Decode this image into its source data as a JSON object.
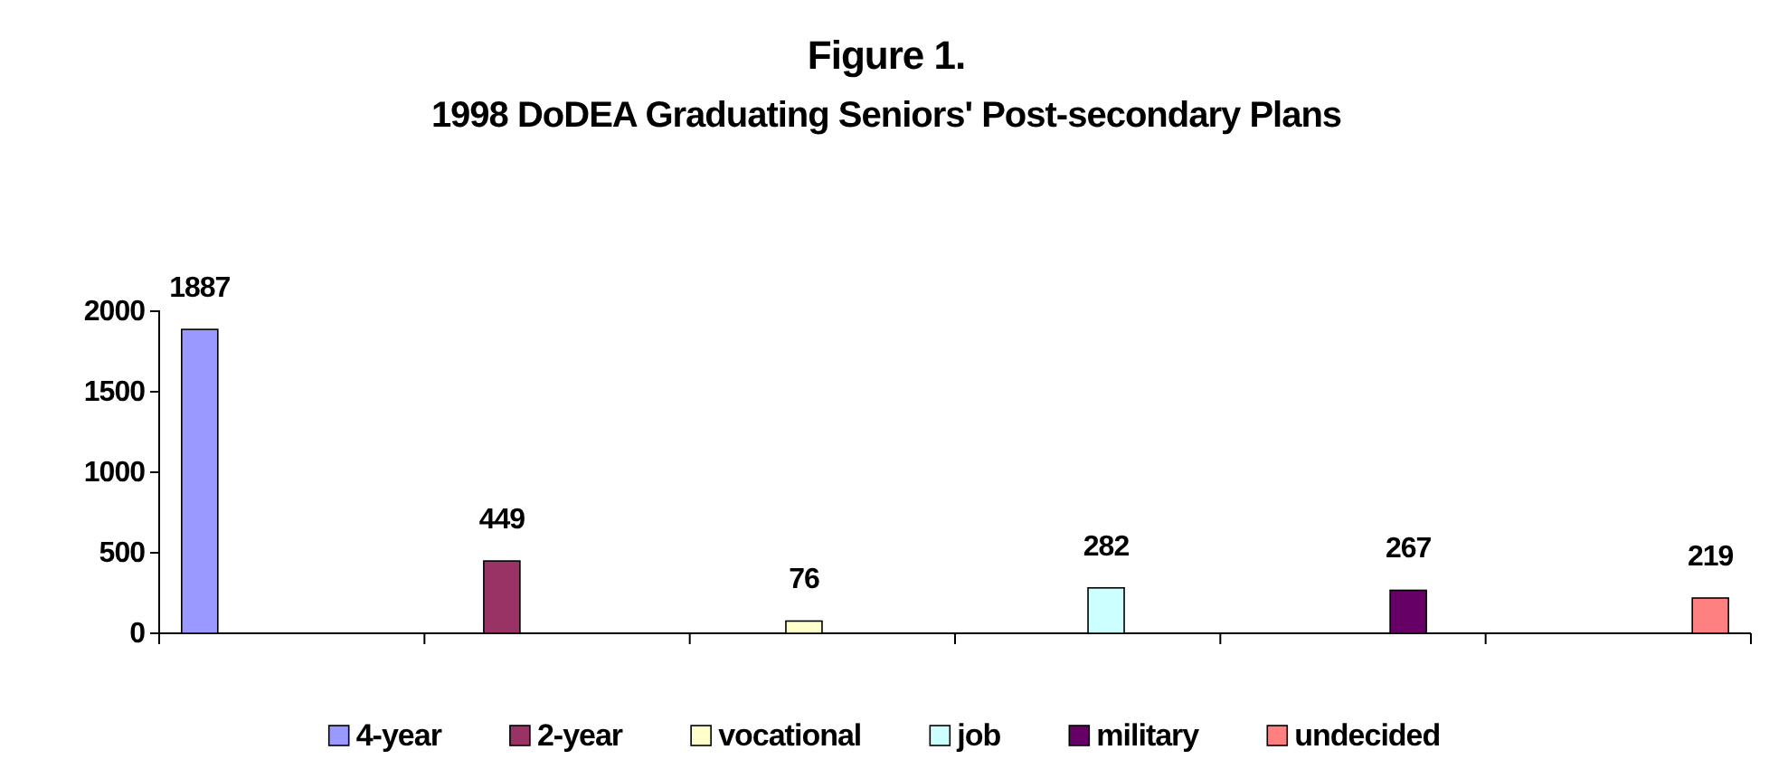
{
  "chart_data": {
    "type": "bar",
    "title": "Figure 1.",
    "subtitle": "1998 DoDEA Graduating Seniors' Post-secondary Plans",
    "categories": [
      null,
      null,
      null,
      null,
      null,
      null
    ],
    "series": [
      {
        "name": "4-year",
        "color": "#9999ff",
        "values": [
          1887,
          null,
          null,
          null,
          null,
          null
        ]
      },
      {
        "name": "2-year",
        "color": "#993366",
        "values": [
          null,
          449,
          null,
          null,
          null,
          null
        ]
      },
      {
        "name": "vocational",
        "color": "#ffffcc",
        "values": [
          null,
          null,
          76,
          null,
          null,
          null
        ]
      },
      {
        "name": "job",
        "color": "#ccffff",
        "values": [
          null,
          null,
          null,
          282,
          null,
          null
        ]
      },
      {
        "name": "military",
        "color": "#660066",
        "values": [
          null,
          null,
          null,
          null,
          267,
          null
        ]
      },
      {
        "name": "undecided",
        "color": "#ff8080",
        "values": [
          null,
          null,
          null,
          null,
          null,
          219
        ]
      }
    ],
    "ylim": [
      0,
      2000
    ],
    "yticks": [
      0,
      500,
      1000,
      1500,
      2000
    ],
    "data_labels": true,
    "grid": false,
    "legend": "bottom"
  }
}
